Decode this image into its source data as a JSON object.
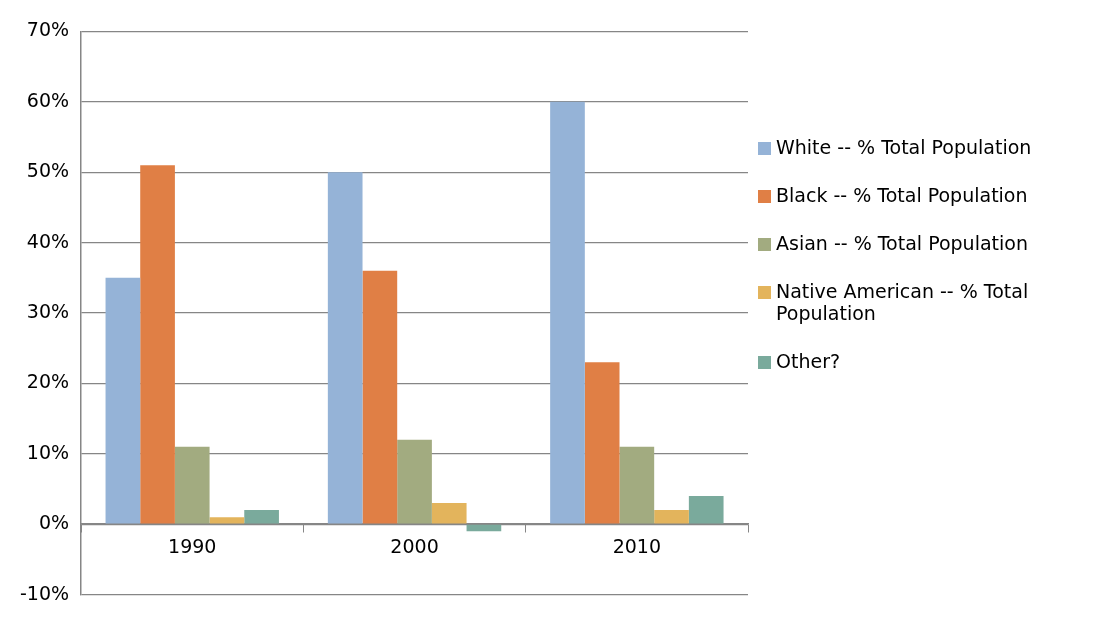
{
  "chart_data": {
    "type": "bar",
    "categories": [
      "1990",
      "2000",
      "2010"
    ],
    "series": [
      {
        "name": "White -- % Total Population",
        "color": "#95b3d7",
        "values": [
          35,
          50,
          60
        ]
      },
      {
        "name": "Black -- % Total Population",
        "color": "#e07f45",
        "values": [
          51,
          36,
          23
        ]
      },
      {
        "name": "Asian -- % Total Population",
        "color": "#a2ab80",
        "values": [
          11,
          12,
          11
        ]
      },
      {
        "name": "Native American -- % Total Population",
        "color": "#e3b45c",
        "values": [
          1,
          3,
          2
        ]
      },
      {
        "name": "Other?",
        "color": "#7aaa9c",
        "values": [
          2,
          -1,
          4
        ]
      }
    ],
    "ylim": [
      -10,
      70
    ],
    "yticks": [
      {
        "value": -10,
        "label": "-10%"
      },
      {
        "value": 0,
        "label": "0%"
      },
      {
        "value": 10,
        "label": "10%"
      },
      {
        "value": 20,
        "label": "20%"
      },
      {
        "value": 30,
        "label": "30%"
      },
      {
        "value": 40,
        "label": "40%"
      },
      {
        "value": 50,
        "label": "50%"
      },
      {
        "value": 60,
        "label": "60%"
      },
      {
        "value": 70,
        "label": "70%"
      }
    ],
    "grid": "y",
    "legend": "right"
  }
}
